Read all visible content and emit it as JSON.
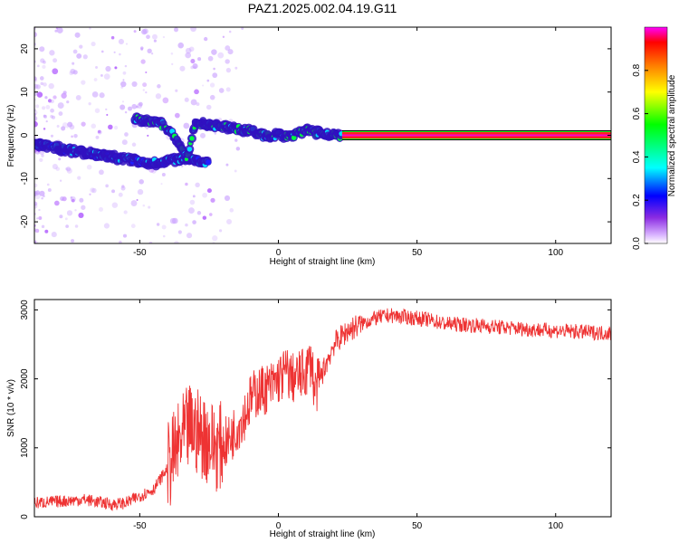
{
  "title": "PAZ1.2025.002.04.19.G11",
  "chart_data": [
    {
      "type": "heatmap",
      "xlabel": "Height of straight line (km)",
      "ylabel": "Frequency (Hz)",
      "xlim": [
        -88,
        120
      ],
      "ylim": [
        -25,
        25
      ],
      "xticks": [
        -50,
        0,
        50,
        100
      ],
      "yticks": [
        20,
        10,
        0,
        -10,
        -20
      ],
      "colorbar": {
        "label": "Normalized spectral amplitude",
        "range": [
          0,
          1
        ],
        "ticks": [
          0.0,
          0.2,
          0.4,
          0.6,
          0.8
        ],
        "colors": [
          "#ffffff",
          "#9b30ff",
          "#0000ff",
          "#00ffff",
          "#00ff00",
          "#ffff00",
          "#ff8000",
          "#ff0000",
          "#ff00ff"
        ]
      },
      "ridges": [
        {
          "x": [
            -88,
            -80,
            -70,
            -60,
            -50,
            -45,
            -40,
            -35,
            -32,
            -28,
            -25
          ],
          "y": [
            -2,
            -3,
            -4,
            -5,
            -6,
            -6.5,
            -6,
            -5.5,
            -5.5,
            -6,
            -6
          ],
          "amplitude": 0.3
        },
        {
          "x": [
            -52,
            -48,
            -42,
            -38,
            -35,
            -33,
            -30,
            -26,
            -20,
            -15,
            -10,
            -5,
            0,
            5,
            10,
            15,
            20,
            23
          ],
          "y": [
            4,
            3.5,
            2.5,
            0,
            -3,
            -5,
            3,
            2.5,
            2,
            1.5,
            1,
            0,
            0,
            0,
            1,
            0.5,
            0,
            0
          ],
          "amplitude": 0.45
        },
        {
          "x": [
            23,
            120
          ],
          "y": [
            0,
            0
          ],
          "amplitude": 1.0
        }
      ]
    },
    {
      "type": "line",
      "xlabel": "Height of straight line (km)",
      "ylabel": "SNR (10 * v/v)",
      "xlim": [
        -88,
        120
      ],
      "ylim": [
        0,
        3150
      ],
      "xticks": [
        -50,
        0,
        50,
        100
      ],
      "yticks": [
        0,
        1000,
        2000,
        3000
      ],
      "color": "#ee3333",
      "series": [
        {
          "x": [
            -88,
            -80,
            -70,
            -60,
            -55,
            -50,
            -45,
            -40,
            -35,
            -32,
            -28,
            -25,
            -22,
            -18,
            -15,
            -12,
            -10,
            -8,
            -5,
            -2,
            0,
            3,
            5,
            8,
            10,
            12,
            13,
            15,
            18,
            20,
            25,
            30,
            35,
            40,
            45,
            50,
            55,
            60,
            70,
            80,
            90,
            100,
            110,
            120
          ],
          "y": [
            200,
            220,
            250,
            180,
            200,
            300,
            400,
            700,
            1100,
            1300,
            1200,
            1100,
            1000,
            1100,
            1300,
            1500,
            1700,
            1800,
            1850,
            1900,
            2000,
            2100,
            2000,
            2050,
            2100,
            2300,
            1800,
            2000,
            2300,
            2500,
            2700,
            2800,
            2880,
            2920,
            2900,
            2880,
            2850,
            2800,
            2780,
            2750,
            2720,
            2700,
            2680,
            2660
          ]
        }
      ]
    }
  ]
}
